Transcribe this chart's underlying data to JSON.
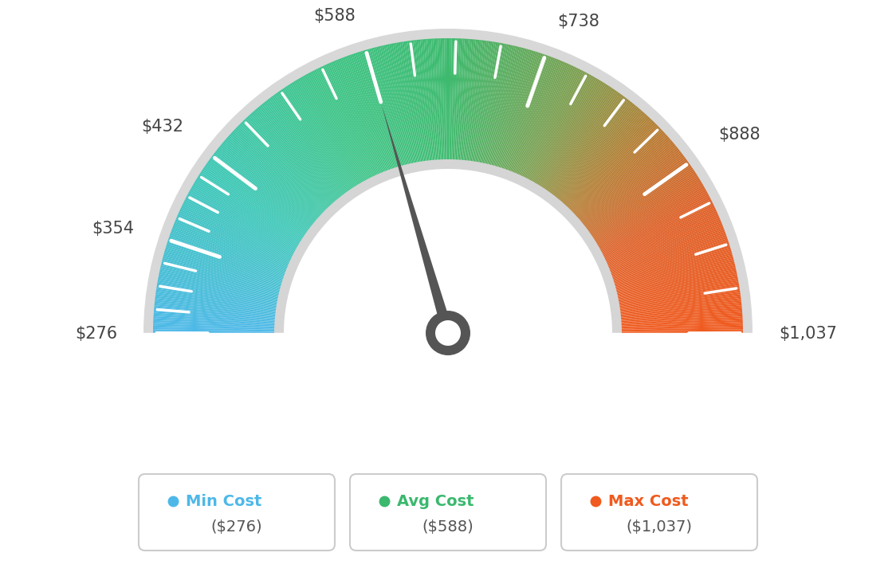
{
  "min_val": 276,
  "avg_val": 588,
  "max_val": 1037,
  "tick_labels": [
    "$276",
    "$354",
    "$432",
    "$588",
    "$738",
    "$888",
    "$1,037"
  ],
  "tick_values": [
    276,
    354,
    432,
    588,
    738,
    888,
    1037
  ],
  "legend_items": [
    {
      "label": "Min Cost",
      "value": "($276)",
      "color": "#4db8e8"
    },
    {
      "label": "Avg Cost",
      "value": "($588)",
      "color": "#3ab86e"
    },
    {
      "label": "Max Cost",
      "value": "($1,037)",
      "color": "#f05a1e"
    }
  ],
  "background_color": "#ffffff",
  "needle_value": 588,
  "color_stops": [
    [
      0.0,
      [
        0.302,
        0.722,
        0.91
      ]
    ],
    [
      0.18,
      [
        0.239,
        0.78,
        0.72
      ]
    ],
    [
      0.35,
      [
        0.239,
        0.769,
        0.529
      ]
    ],
    [
      0.5,
      [
        0.239,
        0.729,
        0.431
      ]
    ],
    [
      0.65,
      [
        0.49,
        0.62,
        0.31
      ]
    ],
    [
      0.75,
      [
        0.71,
        0.49,
        0.2
      ]
    ],
    [
      0.85,
      [
        0.87,
        0.38,
        0.16
      ]
    ],
    [
      1.0,
      [
        0.941,
        0.353,
        0.118
      ]
    ]
  ]
}
